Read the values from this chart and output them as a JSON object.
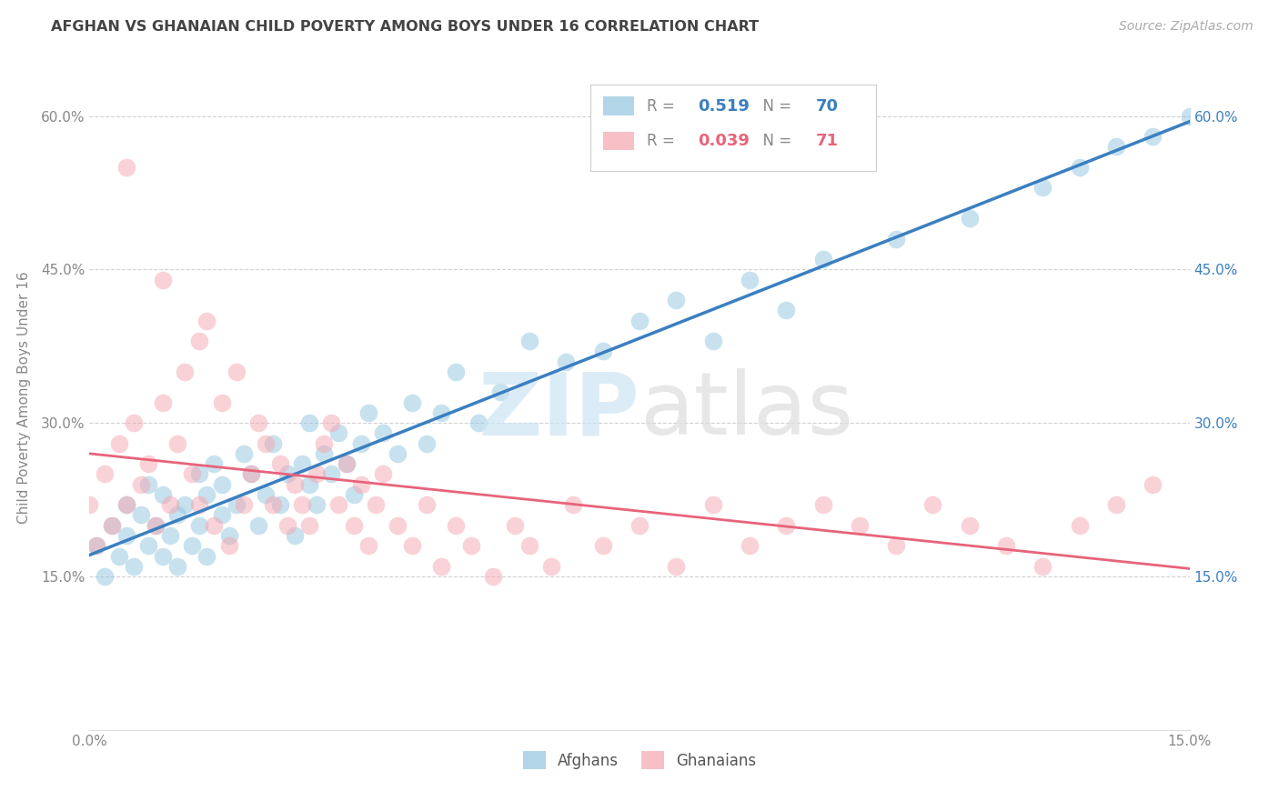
{
  "title": "AFGHAN VS GHANAIAN CHILD POVERTY AMONG BOYS UNDER 16 CORRELATION CHART",
  "source_text": "Source: ZipAtlas.com",
  "ylabel": "Child Poverty Among Boys Under 16",
  "xlim": [
    0.0,
    0.15
  ],
  "ylim": [
    0.0,
    0.65
  ],
  "xtick_labels": [
    "0.0%",
    "15.0%"
  ],
  "xtick_positions": [
    0.0,
    0.15
  ],
  "ytick_labels": [
    "15.0%",
    "30.0%",
    "45.0%",
    "60.0%"
  ],
  "ytick_positions": [
    0.15,
    0.3,
    0.45,
    0.6
  ],
  "afghans_R": "0.519",
  "afghans_N": "70",
  "ghanaians_R": "0.039",
  "ghanaians_N": "71",
  "afghan_color": "#92c5de",
  "ghanaian_color": "#f4a6b0",
  "afghan_line_color": "#3a7fc1",
  "ghanaian_line_color": "#e8637a",
  "background_color": "#ffffff",
  "afghans_x": [
    0.001,
    0.002,
    0.003,
    0.004,
    0.005,
    0.005,
    0.006,
    0.007,
    0.008,
    0.008,
    0.009,
    0.01,
    0.01,
    0.011,
    0.012,
    0.012,
    0.013,
    0.014,
    0.015,
    0.015,
    0.016,
    0.016,
    0.017,
    0.018,
    0.018,
    0.019,
    0.02,
    0.021,
    0.022,
    0.023,
    0.024,
    0.025,
    0.026,
    0.027,
    0.028,
    0.029,
    0.03,
    0.03,
    0.031,
    0.032,
    0.033,
    0.034,
    0.035,
    0.036,
    0.037,
    0.038,
    0.04,
    0.042,
    0.044,
    0.046,
    0.048,
    0.05,
    0.053,
    0.056,
    0.06,
    0.065,
    0.07,
    0.075,
    0.08,
    0.085,
    0.09,
    0.095,
    0.1,
    0.11,
    0.12,
    0.13,
    0.135,
    0.14,
    0.145,
    0.15
  ],
  "afghans_y": [
    0.18,
    0.15,
    0.2,
    0.17,
    0.19,
    0.22,
    0.16,
    0.21,
    0.18,
    0.24,
    0.2,
    0.17,
    0.23,
    0.19,
    0.21,
    0.16,
    0.22,
    0.18,
    0.2,
    0.25,
    0.17,
    0.23,
    0.26,
    0.21,
    0.24,
    0.19,
    0.22,
    0.27,
    0.25,
    0.2,
    0.23,
    0.28,
    0.22,
    0.25,
    0.19,
    0.26,
    0.24,
    0.3,
    0.22,
    0.27,
    0.25,
    0.29,
    0.26,
    0.23,
    0.28,
    0.31,
    0.29,
    0.27,
    0.32,
    0.28,
    0.31,
    0.35,
    0.3,
    0.33,
    0.38,
    0.36,
    0.37,
    0.4,
    0.42,
    0.38,
    0.44,
    0.41,
    0.46,
    0.48,
    0.5,
    0.53,
    0.55,
    0.57,
    0.58,
    0.6
  ],
  "ghanaians_x": [
    0.0,
    0.001,
    0.002,
    0.003,
    0.004,
    0.005,
    0.006,
    0.007,
    0.008,
    0.009,
    0.01,
    0.011,
    0.012,
    0.013,
    0.014,
    0.015,
    0.016,
    0.017,
    0.018,
    0.019,
    0.02,
    0.021,
    0.022,
    0.023,
    0.024,
    0.025,
    0.026,
    0.027,
    0.028,
    0.029,
    0.03,
    0.031,
    0.032,
    0.033,
    0.034,
    0.035,
    0.036,
    0.037,
    0.038,
    0.039,
    0.04,
    0.042,
    0.044,
    0.046,
    0.048,
    0.05,
    0.052,
    0.055,
    0.058,
    0.06,
    0.063,
    0.066,
    0.07,
    0.075,
    0.08,
    0.085,
    0.09,
    0.095,
    0.1,
    0.105,
    0.11,
    0.115,
    0.12,
    0.125,
    0.13,
    0.135,
    0.14,
    0.145,
    0.005,
    0.01,
    0.015
  ],
  "ghanaians_y": [
    0.22,
    0.18,
    0.25,
    0.2,
    0.28,
    0.22,
    0.3,
    0.24,
    0.26,
    0.2,
    0.32,
    0.22,
    0.28,
    0.35,
    0.25,
    0.22,
    0.4,
    0.2,
    0.32,
    0.18,
    0.35,
    0.22,
    0.25,
    0.3,
    0.28,
    0.22,
    0.26,
    0.2,
    0.24,
    0.22,
    0.2,
    0.25,
    0.28,
    0.3,
    0.22,
    0.26,
    0.2,
    0.24,
    0.18,
    0.22,
    0.25,
    0.2,
    0.18,
    0.22,
    0.16,
    0.2,
    0.18,
    0.15,
    0.2,
    0.18,
    0.16,
    0.22,
    0.18,
    0.2,
    0.16,
    0.22,
    0.18,
    0.2,
    0.22,
    0.2,
    0.18,
    0.22,
    0.2,
    0.18,
    0.16,
    0.2,
    0.22,
    0.24,
    0.55,
    0.44,
    0.38
  ]
}
